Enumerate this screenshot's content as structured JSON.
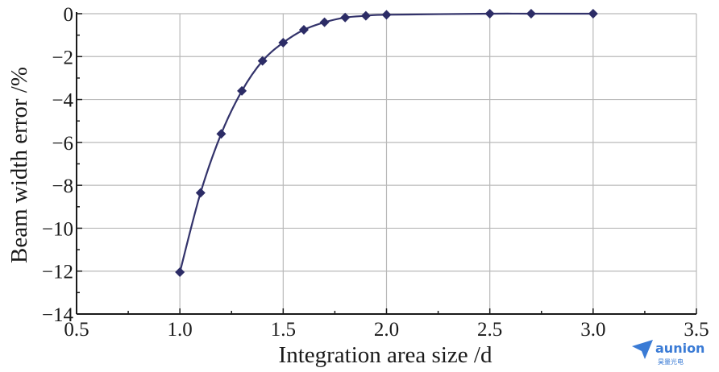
{
  "chart_data": {
    "type": "line",
    "xlabel": "Integration area size /d",
    "ylabel": "Beam width error /%",
    "xlim": [
      0.5,
      3.5
    ],
    "ylim": [
      -14,
      0
    ],
    "xticks": [
      0.5,
      1.0,
      1.5,
      2.0,
      2.5,
      3.0,
      3.5
    ],
    "yticks": [
      -14,
      -12,
      -10,
      -8,
      -6,
      -4,
      -2,
      0
    ],
    "xtick_labels": [
      "0.5",
      "1.0",
      "1.5",
      "2.0",
      "2.5",
      "3.0",
      "3.5"
    ],
    "ytick_labels": [
      "−14",
      "−12",
      "−10",
      "−8",
      "−6",
      "−4",
      "−2",
      "0"
    ],
    "grid": true,
    "series": [
      {
        "color": "#2c2c66",
        "marker": "diamond",
        "x": [
          1.0,
          1.1,
          1.2,
          1.3,
          1.4,
          1.5,
          1.6,
          1.7,
          1.8,
          1.9,
          2.0,
          2.5,
          2.7,
          3.0
        ],
        "values": [
          -12.05,
          -8.35,
          -5.6,
          -3.6,
          -2.2,
          -1.35,
          -0.75,
          -0.4,
          -0.18,
          -0.1,
          -0.05,
          0.0,
          0.0,
          0.0
        ]
      }
    ]
  },
  "watermark": {
    "brand": "aunion",
    "sub": "昊量光电"
  }
}
